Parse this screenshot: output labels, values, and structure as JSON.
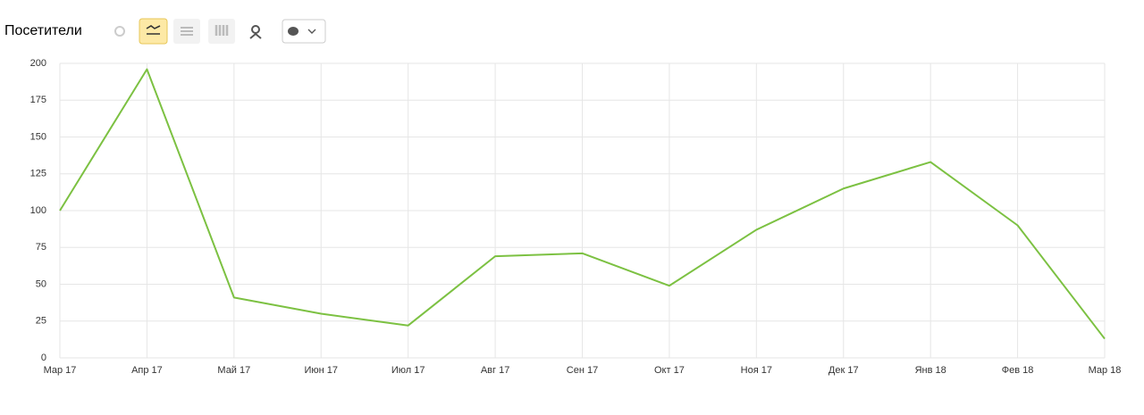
{
  "chart_data": {
    "type": "line",
    "title": "Посетители",
    "categories": [
      "Мар 17",
      "Апр 17",
      "Май 17",
      "Июн 17",
      "Июл 17",
      "Авг 17",
      "Сен 17",
      "Окт 17",
      "Ноя 17",
      "Дек 17",
      "Янв 18",
      "Фев 18",
      "Мар 18"
    ],
    "values": [
      100,
      196,
      41,
      30,
      22,
      69,
      71,
      49,
      87,
      115,
      133,
      90,
      13
    ],
    "color": "#7cc142",
    "ylim": [
      0,
      200
    ],
    "yticks": [
      0,
      25,
      50,
      75,
      100,
      125,
      150,
      175,
      200
    ],
    "grid": true
  }
}
